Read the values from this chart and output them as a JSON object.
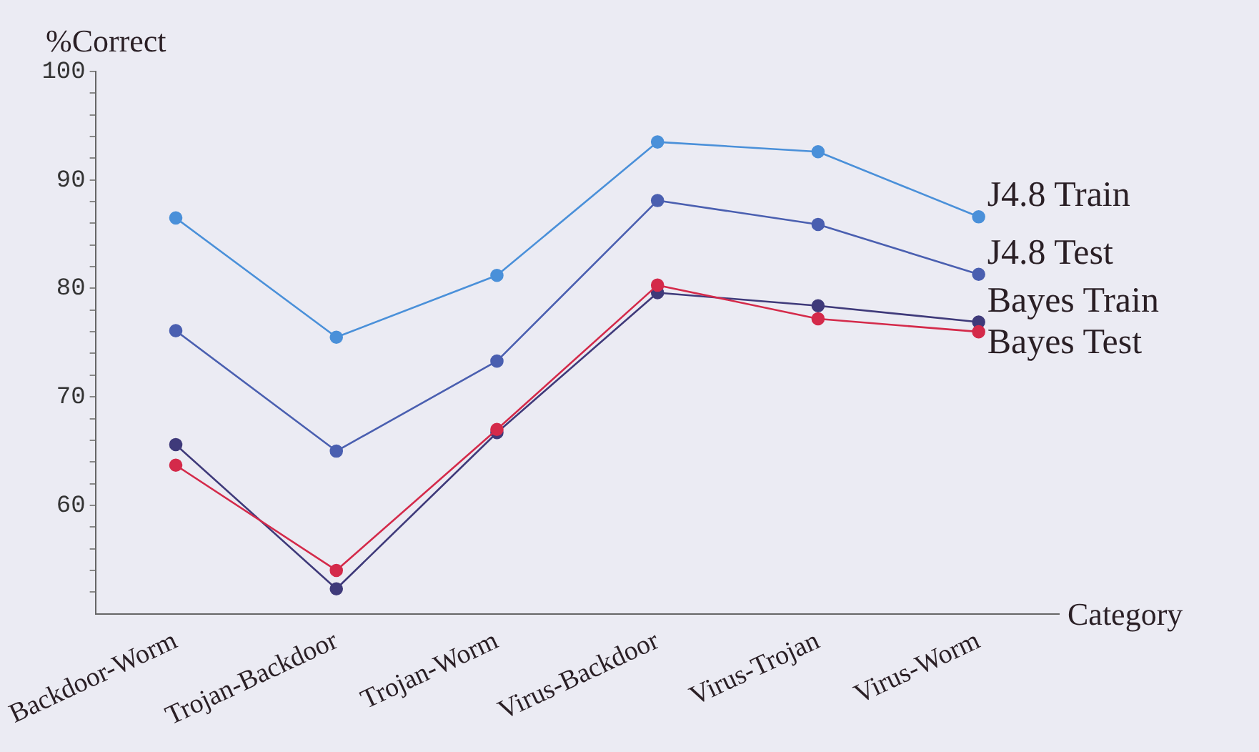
{
  "chart_data": {
    "type": "line",
    "xlabel": "Category",
    "ylabel": "%Correct",
    "categories": [
      "Backdoor-Worm",
      "Trojan-Backdoor",
      "Trojan-Worm",
      "Virus-Backdoor",
      "Virus-Trojan",
      "Virus-Worm"
    ],
    "series": [
      {
        "name": "J4.8 Train",
        "color": "#4a90d9",
        "values": [
          86.5,
          75.5,
          81.2,
          93.5,
          92.6,
          86.6
        ]
      },
      {
        "name": "J4.8 Test",
        "color": "#4a5fb0",
        "values": [
          76.1,
          65.0,
          73.3,
          88.1,
          85.9,
          81.3
        ]
      },
      {
        "name": "Bayes Train",
        "color": "#3f3a7a",
        "values": [
          65.6,
          52.3,
          66.7,
          79.6,
          78.4,
          76.9
        ]
      },
      {
        "name": "Bayes Test",
        "color": "#d42a4a",
        "values": [
          63.7,
          54.0,
          67.0,
          80.3,
          77.2,
          76.0
        ]
      }
    ],
    "ylim": [
      50,
      100
    ],
    "yticks": [
      {
        "value": 52,
        "label": null
      },
      {
        "value": 54,
        "label": null
      },
      {
        "value": 56,
        "label": null
      },
      {
        "value": 58,
        "label": null
      },
      60,
      {
        "value": 62,
        "label": null
      },
      {
        "value": 64,
        "label": null
      },
      {
        "value": 66,
        "label": null
      },
      {
        "value": 68,
        "label": null
      },
      70,
      {
        "value": 72,
        "label": null
      },
      {
        "value": 74,
        "label": null
      },
      {
        "value": 76,
        "label": null
      },
      {
        "value": 78,
        "label": null
      },
      80,
      {
        "value": 82,
        "label": null
      },
      {
        "value": 84,
        "label": null
      },
      {
        "value": 86,
        "label": null
      },
      {
        "value": 88,
        "label": null
      },
      90,
      {
        "value": 92,
        "label": null
      },
      {
        "value": 94,
        "label": null
      },
      {
        "value": 96,
        "label": null
      },
      {
        "value": 98,
        "label": null
      },
      100
    ],
    "grid": false,
    "legend": false,
    "marker": "circle",
    "line_style": "solid"
  }
}
